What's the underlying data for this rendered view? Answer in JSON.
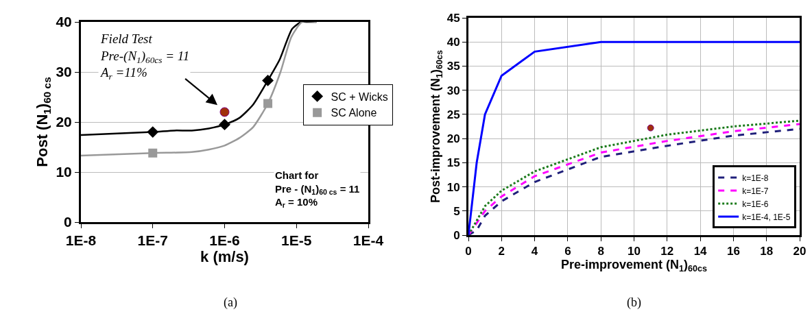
{
  "chart_data": [
    {
      "type": "line",
      "xlabel": "k (m/s)",
      "ylabel": "Post (N$_{1}$)$_{60 cs}$",
      "log": "x",
      "xlim": [
        1e-08,
        0.0001
      ],
      "xticks": [
        {
          "value": 1e-08,
          "label": "1E-8"
        },
        {
          "value": 1e-07,
          "label": "1E-7"
        },
        {
          "value": 1e-06,
          "label": "1E-6"
        },
        {
          "value": 1e-05,
          "label": "1E-5"
        },
        {
          "value": 0.0001,
          "label": "1E-4"
        }
      ],
      "ylim": [
        0,
        40
      ],
      "yticks": [
        0,
        10,
        20,
        30,
        40
      ],
      "grid": "y",
      "legend": "right",
      "series": [
        {
          "type": "line",
          "color": "#000000",
          "marker": "none",
          "line_style": "solid",
          "x": [
            1e-08,
            1e-07,
            2e-07,
            3.5e-07,
            6e-07,
            1e-06,
            1.6e-06,
            2.5e-06,
            4e-06,
            5.85e-06,
            8.7e-06,
            1.17e-05,
            1.44e-05,
            1.9e-05
          ],
          "values": [
            17.4,
            18.0,
            18.3,
            18.3,
            18.7,
            19.5,
            20.8,
            23.5,
            28.3,
            32.5,
            38.6,
            40,
            40,
            40
          ]
        },
        {
          "type": "line",
          "color": "#999999",
          "marker": "none",
          "line_style": "solid",
          "x": [
            1e-08,
            1e-07,
            3.5e-07,
            6e-07,
            1e-06,
            1.6e-06,
            2.5e-06,
            4e-06,
            6e-06,
            8.5e-06,
            1.2e-05,
            1.9e-05
          ],
          "values": [
            13.3,
            13.8,
            14.0,
            14.5,
            15.3,
            16.8,
            19.0,
            23.7,
            30.0,
            37.0,
            40.0,
            40.0
          ]
        },
        {
          "type": "scatter",
          "name": "SC + Wicks",
          "color": "#000000",
          "marker": "diamond",
          "x": [
            1e-07,
            1e-06,
            4e-06
          ],
          "values": [
            18.0,
            19.5,
            28.3
          ]
        },
        {
          "type": "scatter",
          "name": "SC Alone",
          "color": "#999999",
          "marker": "square",
          "x": [
            1e-07,
            4e-06
          ],
          "values": [
            13.8,
            23.7
          ]
        },
        {
          "type": "scatter",
          "color": "#a0300c",
          "marker": "circle",
          "x": [
            1e-06
          ],
          "values": [
            22
          ]
        }
      ],
      "annotations": [
        "Field Test\nPre-(N$_{1}$)$_{60cs}$ = 11\nA$_{r}$ =11%",
        "Chart for\nPre - (N$_{1}$)$_{60 cs}$ = 11\nA$_{r}$ = 10%",
        "(a)"
      ]
    },
    {
      "type": "line",
      "xlabel": "Pre-improvement (N$_{1}$)$_{60cs}$",
      "ylabel": "Post-improvement (N$_{1}$)$_{60cs}$",
      "xlim": [
        0,
        20
      ],
      "xticks": [
        0,
        2,
        4,
        6,
        8,
        10,
        12,
        14,
        16,
        18,
        20
      ],
      "ylim": [
        0,
        45
      ],
      "yticks": [
        0,
        5,
        10,
        15,
        20,
        25,
        30,
        35,
        40,
        45
      ],
      "grid": true,
      "legend": "bottom right",
      "series": [
        {
          "type": "line",
          "name": "k=1E-8",
          "color": "#1f1f7a",
          "marker": "none",
          "line_style": "dashed",
          "x": [
            0,
            0.5,
            1,
            2,
            4,
            8,
            12,
            16,
            20
          ],
          "values": [
            0,
            1,
            4,
            7,
            11,
            16.2,
            18.5,
            20.6,
            22
          ]
        },
        {
          "type": "line",
          "name": "k=1E-7",
          "color": "#ff00ff",
          "marker": "none",
          "line_style": "dashed",
          "x": [
            0,
            1,
            2,
            4,
            8,
            12,
            16,
            20
          ],
          "values": [
            0,
            5,
            8,
            12.2,
            17.1,
            19.5,
            21.5,
            23
          ]
        },
        {
          "type": "line",
          "name": "k=1E-6",
          "color": "#1a7a1a",
          "marker": "none",
          "line_style": "dotted",
          "x": [
            0,
            1,
            2,
            4,
            8,
            12,
            16,
            20
          ],
          "values": [
            0,
            6,
            9.2,
            13.2,
            18.2,
            20.8,
            22.5,
            23.7
          ]
        },
        {
          "type": "line",
          "name": "k=1E-4, 1E-5",
          "color": "#0000ff",
          "marker": "none",
          "line_style": "solid",
          "x": [
            0,
            0.5,
            1,
            2,
            4,
            8,
            20
          ],
          "values": [
            0,
            15,
            25,
            33,
            38,
            40,
            40
          ]
        },
        {
          "type": "scatter",
          "color": "#a0300c",
          "marker": "circle",
          "x": [
            11
          ],
          "values": [
            22.2
          ]
        }
      ],
      "annotations": [
        "(b)"
      ]
    }
  ]
}
